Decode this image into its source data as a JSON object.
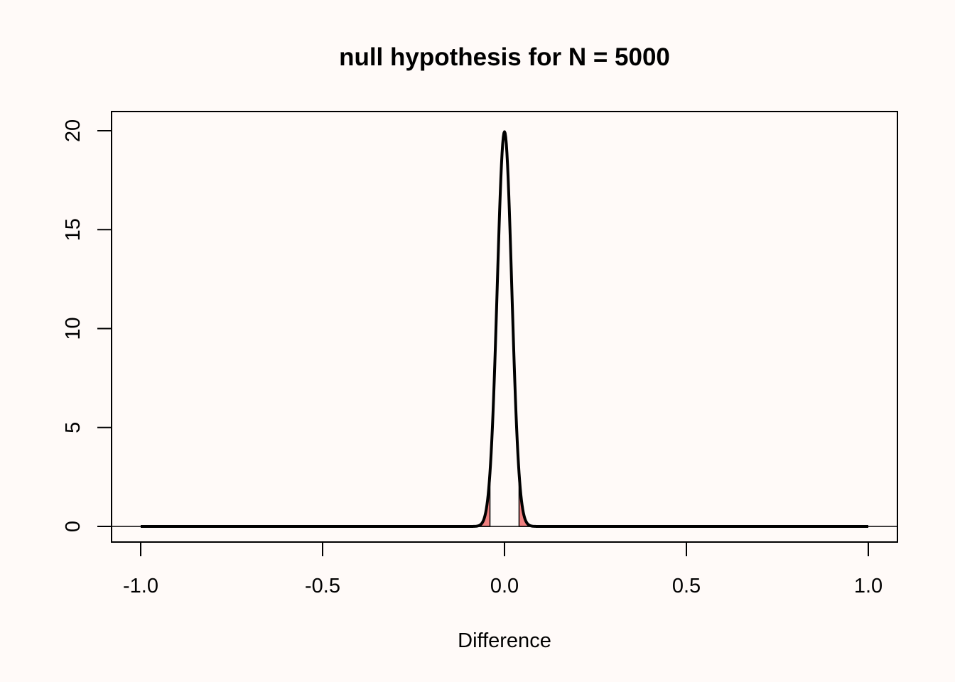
{
  "chart_data": {
    "type": "area",
    "title": "null hypothesis for N =  5000",
    "xlabel": "Difference",
    "ylabel": "",
    "xlim": [
      -1.0,
      1.0
    ],
    "ylim": [
      0,
      20
    ],
    "x_ticks": [
      -1.0,
      -0.5,
      0.0,
      0.5,
      1.0
    ],
    "x_tick_labels": [
      "-1.0",
      "-0.5",
      "0.0",
      "0.5",
      "1.0"
    ],
    "y_ticks": [
      0,
      5,
      10,
      15,
      20
    ],
    "y_tick_labels": [
      "0",
      "5",
      "10",
      "15",
      "20"
    ],
    "series": [
      {
        "distribution": "normal",
        "mean": 0,
        "sd": 0.02,
        "color": "#000000"
      }
    ],
    "rejection_regions": [
      {
        "from": -0.04,
        "to": -0.08,
        "color": "#f08080"
      },
      {
        "from": 0.04,
        "to": 0.08,
        "color": "#f08080"
      }
    ],
    "reference_lines": [
      {
        "y": 0
      }
    ],
    "grid": false,
    "legend": "none",
    "colors": {
      "background": "#fffaf8",
      "curve": "#000000",
      "shade": "#f08080"
    }
  }
}
